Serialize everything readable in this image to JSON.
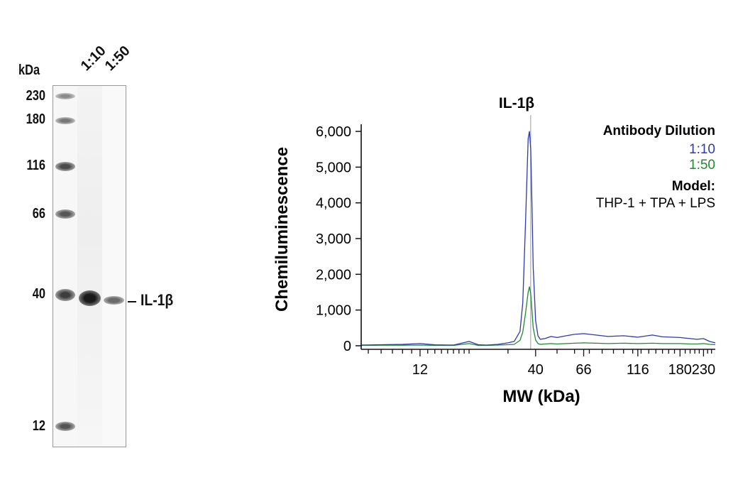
{
  "blot": {
    "unit_label": "kDa",
    "lane_labels": [
      "1:10",
      "1:50"
    ],
    "mw_markers": [
      "230",
      "180",
      "116",
      "66",
      "40",
      "12"
    ],
    "target_label": "IL-1β"
  },
  "chart_data": {
    "type": "line",
    "title": "IL-1β",
    "xlabel": "MW (kDa)",
    "ylabel": "Chemiluminescence",
    "x_scale": "log",
    "xlim": [
      6.5,
      260
    ],
    "ylim": [
      -100,
      6200
    ],
    "x_ticks": [
      12,
      40,
      66,
      116,
      180,
      230
    ],
    "y_ticks": [
      0,
      1000,
      2000,
      3000,
      4000,
      5000,
      6000
    ],
    "y_tick_labels": [
      "0",
      "1,000",
      "2,000",
      "3,000",
      "4,000",
      "5,000",
      "6,000"
    ],
    "marker_line_x": 38,
    "legend": {
      "title": "Antibody Dilution",
      "model_title": "Model:",
      "model_value": "THP-1 + TPA + LPS",
      "placement": "top-right"
    },
    "series": [
      {
        "name": "1:10",
        "color": "#2b3ab0",
        "x": [
          6.5,
          8,
          10,
          12,
          14,
          17,
          20,
          22,
          24,
          27,
          30,
          32,
          34,
          35,
          36,
          37,
          37.5,
          38,
          38.5,
          39,
          40,
          41,
          42,
          44,
          47,
          50,
          55,
          60,
          66,
          75,
          85,
          100,
          116,
          135,
          150,
          180,
          200,
          215,
          230,
          245,
          260
        ],
        "values": [
          20,
          30,
          40,
          60,
          25,
          20,
          120,
          30,
          20,
          40,
          80,
          120,
          400,
          1200,
          3400,
          5800,
          6000,
          5500,
          4000,
          2200,
          700,
          280,
          180,
          200,
          260,
          230,
          280,
          320,
          340,
          300,
          260,
          280,
          240,
          300,
          250,
          230,
          200,
          180,
          200,
          120,
          80
        ]
      },
      {
        "name": "1:50",
        "color": "#1f8a2e",
        "x": [
          6.5,
          8,
          10,
          12,
          14,
          17,
          20,
          22,
          24,
          27,
          30,
          32,
          34,
          35,
          36,
          37,
          37.5,
          38,
          38.5,
          39,
          40,
          41,
          42,
          44,
          47,
          50,
          55,
          60,
          66,
          75,
          85,
          100,
          116,
          135,
          150,
          180,
          200,
          215,
          230,
          245,
          260
        ],
        "values": [
          10,
          15,
          15,
          20,
          10,
          10,
          60,
          10,
          10,
          20,
          30,
          40,
          150,
          380,
          900,
          1500,
          1650,
          1450,
          1000,
          500,
          160,
          60,
          40,
          50,
          60,
          50,
          60,
          70,
          80,
          70,
          60,
          70,
          60,
          70,
          60,
          60,
          50,
          50,
          60,
          40,
          30
        ]
      }
    ]
  }
}
